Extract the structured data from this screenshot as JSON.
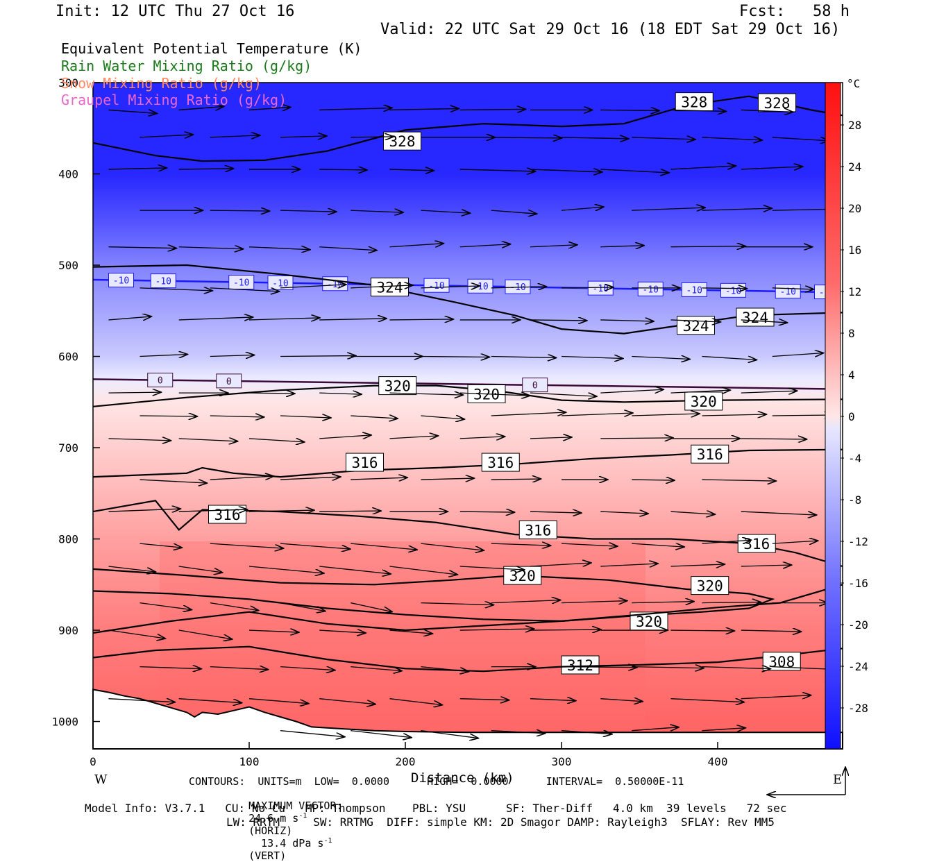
{
  "header": {
    "init": "Init: 12 UTC Thu 27 Oct 16",
    "fcst": "Fcst:   58 h",
    "valid": "Valid: 22 UTC Sat 29 Oct 16 (18 EDT Sat 29 Oct 16)"
  },
  "legend": [
    {
      "label": "Equivalent Potential Temperature (K)",
      "color": "#000000"
    },
    {
      "label": "Rain Water Mixing Ratio (g/kg)",
      "color": "#1a7a1a"
    },
    {
      "label": "Snow Mixing Ratio (g/kg)",
      "color": "#ff8866"
    },
    {
      "label": "Graupel Mixing Ratio (g/kg)",
      "color": "#ee66cc"
    }
  ],
  "footer": {
    "contours": "CONTOURS:  UNITS=m  LOW=  0.0000      HIGH=  0.0000      INTERVAL=  0.50000E-11",
    "maxvec_label": "MAXIMUM VECTOR:",
    "maxvec_h": "24.6 m s",
    "maxvec_h_unit": "(HORIZ)",
    "maxvec_v": "13.4 dPa s",
    "maxvec_v_unit": "(VERT)",
    "exponent": "-1",
    "model1": "Model Info: V3.7.1   CU: No Cu   MP: Thompson    PBL: YSU      SF: Ther-Diff   4.0 km  39 levels   72 sec",
    "model2": "LW: RRTM     SW: RRTMG  DIFF: simple KM: 2D Smagor DAMP: Rayleigh3  SFLAY: Rev MM5"
  },
  "chart_data": {
    "type": "heatmap",
    "xlabel": "Distance (km)",
    "ylabel": "",
    "xlim": [
      0,
      480
    ],
    "ylim": [
      1030,
      300
    ],
    "xticks": [
      0,
      100,
      200,
      300,
      400
    ],
    "yticks": [
      300,
      400,
      500,
      600,
      700,
      800,
      900,
      1000
    ],
    "x_ends": {
      "left": "W",
      "right": "E"
    },
    "colorbar": {
      "unit": "°C",
      "ticks": [
        28,
        24,
        20,
        16,
        12,
        8,
        4,
        0,
        -4,
        -8,
        -12,
        -16,
        -20,
        -24,
        -28
      ],
      "hot": "#ff2020",
      "cold": "#1a1aff"
    },
    "temperature_field": {
      "levels": [
        300,
        350,
        400,
        450,
        500,
        550,
        600,
        625,
        650,
        700,
        750,
        800,
        850,
        900,
        950,
        1000
      ],
      "celsius": [
        -40,
        -35,
        -30,
        -24,
        -17,
        -12,
        -7,
        -2,
        2,
        6,
        10,
        14,
        17,
        20,
        22,
        24
      ]
    },
    "isotherms": [
      {
        "value": "-10",
        "color": "#1a1aff",
        "p": 522,
        "labels_x": [
          18,
          45,
          95,
          120,
          155,
          220,
          248,
          272,
          325,
          357,
          385,
          410,
          445,
          470
        ]
      },
      {
        "value": "0",
        "color": "#3a0a3a",
        "p": 628,
        "labels_x": [
          43,
          87,
          283
        ]
      }
    ],
    "theta_e_contours": [
      {
        "value": 328,
        "pts": [
          [
            0,
            366
          ],
          [
            40,
            380
          ],
          [
            70,
            386
          ],
          [
            110,
            385
          ],
          [
            150,
            375
          ],
          [
            200,
            352
          ],
          [
            250,
            345
          ],
          [
            300,
            348
          ],
          [
            340,
            345
          ],
          [
            380,
            325
          ],
          [
            420,
            315
          ],
          [
            460,
            330
          ],
          [
            480,
            336
          ]
        ],
        "labels": [
          [
            198,
            364
          ],
          [
            385,
            321
          ],
          [
            438,
            322
          ]
        ]
      },
      {
        "value": 324,
        "pts": [
          [
            0,
            502
          ],
          [
            60,
            500
          ],
          [
            120,
            510
          ],
          [
            180,
            522
          ],
          [
            230,
            540
          ],
          [
            270,
            555
          ],
          [
            300,
            570
          ],
          [
            340,
            575
          ],
          [
            380,
            565
          ],
          [
            420,
            555
          ],
          [
            480,
            552
          ]
        ],
        "labels": [
          [
            190,
            524
          ],
          [
            386,
            566
          ],
          [
            424,
            557
          ]
        ]
      },
      {
        "value": 320,
        "pts": [
          [
            0,
            655
          ],
          [
            60,
            645
          ],
          [
            120,
            637
          ],
          [
            180,
            632
          ],
          [
            220,
            632
          ],
          [
            260,
            638
          ],
          [
            300,
            648
          ],
          [
            340,
            650
          ],
          [
            400,
            648
          ],
          [
            480,
            647
          ]
        ],
        "labels": [
          [
            195,
            632
          ],
          [
            252,
            641
          ],
          [
            391,
            649
          ]
        ]
      },
      {
        "value": 316,
        "pts": [
          [
            0,
            732
          ],
          [
            60,
            728
          ],
          [
            70,
            722
          ],
          [
            90,
            728
          ],
          [
            120,
            732
          ],
          [
            170,
            725
          ],
          [
            220,
            722
          ],
          [
            270,
            718
          ],
          [
            320,
            712
          ],
          [
            370,
            708
          ],
          [
            420,
            703
          ],
          [
            480,
            702
          ]
        ],
        "labels": [
          [
            174,
            716
          ],
          [
            261,
            716
          ],
          [
            395,
            707
          ]
        ]
      },
      {
        "value": 316,
        "pts": [
          [
            0,
            770
          ],
          [
            40,
            758
          ],
          [
            55,
            790
          ],
          [
            70,
            768
          ],
          [
            120,
            770
          ],
          [
            170,
            775
          ],
          [
            220,
            782
          ],
          [
            270,
            795
          ],
          [
            320,
            800
          ],
          [
            370,
            800
          ],
          [
            420,
            805
          ],
          [
            450,
            815
          ],
          [
            480,
            830
          ]
        ],
        "labels": [
          [
            86,
            773
          ],
          [
            285,
            790
          ],
          [
            425,
            805
          ]
        ]
      },
      {
        "value": 320,
        "pts": [
          [
            0,
            833
          ],
          [
            60,
            840
          ],
          [
            120,
            848
          ],
          [
            180,
            850
          ],
          [
            230,
            845
          ],
          [
            270,
            840
          ],
          [
            330,
            845
          ],
          [
            380,
            855
          ],
          [
            420,
            860
          ],
          [
            435,
            866
          ],
          [
            420,
            876
          ],
          [
            390,
            880
          ],
          [
            340,
            885
          ],
          [
            300,
            890
          ],
          [
            250,
            888
          ],
          [
            200,
            883
          ],
          [
            150,
            876
          ],
          [
            100,
            866
          ],
          [
            50,
            860
          ],
          [
            0,
            857
          ]
        ],
        "labels": [
          [
            275,
            840
          ],
          [
            395,
            851
          ],
          [
            356,
            890
          ]
        ]
      },
      {
        "value": 312,
        "pts": [
          [
            0,
            903
          ],
          [
            50,
            890
          ],
          [
            100,
            880
          ],
          [
            150,
            893
          ],
          [
            200,
            900
          ],
          [
            250,
            895
          ],
          [
            300,
            890
          ],
          [
            350,
            883
          ],
          [
            400,
            875
          ],
          [
            440,
            870
          ],
          [
            480,
            850
          ]
        ],
        "labels": [
          [
            312,
            938
          ]
        ]
      },
      {
        "value": 308,
        "pts": [
          [
            0,
            930
          ],
          [
            40,
            922
          ],
          [
            100,
            918
          ],
          [
            150,
            932
          ],
          [
            200,
            942
          ],
          [
            250,
            945
          ],
          [
            300,
            940
          ],
          [
            350,
            938
          ],
          [
            400,
            935
          ],
          [
            440,
            928
          ],
          [
            480,
            920
          ]
        ],
        "labels": [
          [
            441,
            934
          ]
        ]
      }
    ],
    "wind_vectors": {
      "note": "horizontal component in m s-1, vertical in dPa s-1",
      "max_horiz": 24.6,
      "max_vert": 13.4
    }
  }
}
